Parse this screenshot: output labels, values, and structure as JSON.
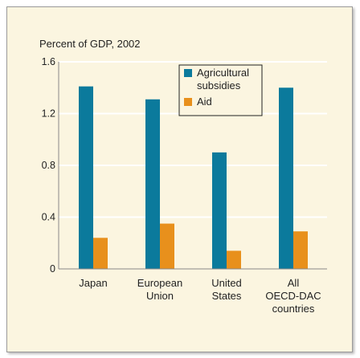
{
  "chart_data": {
    "type": "bar",
    "title": "",
    "ylabel": "Percent of GDP, 2002",
    "xlabel": "",
    "ylim": [
      0,
      1.6
    ],
    "yticks": [
      "0",
      "0.4",
      "0.8",
      "1.2",
      "1.6"
    ],
    "ytick_values": [
      0,
      0.4,
      0.8,
      1.2,
      1.6
    ],
    "grid": true,
    "legend_position": "top-right",
    "categories": [
      [
        "Japan"
      ],
      [
        "European",
        "Union"
      ],
      [
        "United",
        "States"
      ],
      [
        "All",
        "OECD-DAC",
        "countries"
      ]
    ],
    "series": [
      {
        "name": [
          "Agricultural",
          "subsidies"
        ],
        "color": "#0b7a9c",
        "values": [
          1.41,
          1.31,
          0.9,
          1.4
        ]
      },
      {
        "name": [
          "Aid"
        ],
        "color": "#e8901c",
        "values": [
          0.24,
          0.35,
          0.14,
          0.29
        ]
      }
    ]
  }
}
